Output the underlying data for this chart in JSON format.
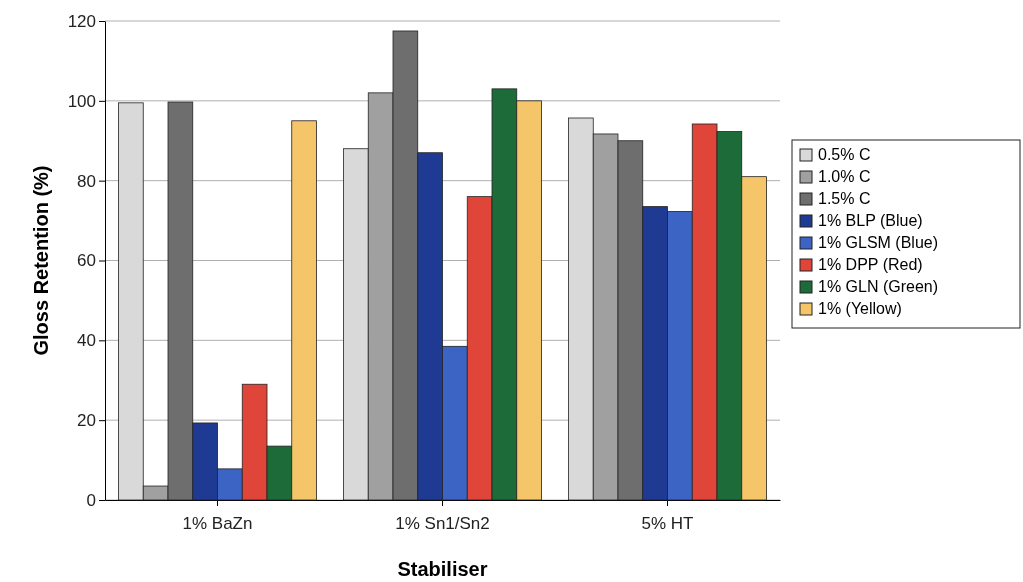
{
  "chart_data": {
    "type": "bar",
    "xlabel": "Stabiliser",
    "ylabel": "Gloss Retention (%)",
    "categories": [
      "1% BaZn",
      "1% Sn1/Sn2",
      "5% HT"
    ],
    "series": [
      {
        "name": "0.5% C",
        "color": "#d9d9d9",
        "values": [
          99.5,
          88,
          95.7
        ]
      },
      {
        "name": "1.0% C",
        "color": "#a0a0a0",
        "values": [
          3.5,
          102,
          91.7
        ]
      },
      {
        "name": "1.5% C",
        "color": "#6e6e6e",
        "values": [
          99.7,
          117.5,
          90
        ]
      },
      {
        "name": "1% BLP (Blue)",
        "color": "#1f3a93",
        "values": [
          19.3,
          87,
          73.5
        ]
      },
      {
        "name": "1% GLSM (Blue)",
        "color": "#3b64c4",
        "values": [
          7.8,
          38.5,
          72.3
        ]
      },
      {
        "name": "1% DPP (Red)",
        "color": "#e0453a",
        "values": [
          29,
          76,
          94.2
        ]
      },
      {
        "name": "1% GLN (Green)",
        "color": "#1e6b3a",
        "values": [
          13.5,
          103,
          92.3
        ]
      },
      {
        "name": "1% (Yellow)",
        "color": "#f5c56a",
        "values": [
          95,
          100,
          81
        ]
      }
    ],
    "ylim": [
      0,
      120
    ],
    "yticks": [
      0,
      20,
      40,
      60,
      80,
      100,
      120
    ],
    "grid": "y",
    "legend": "right"
  }
}
